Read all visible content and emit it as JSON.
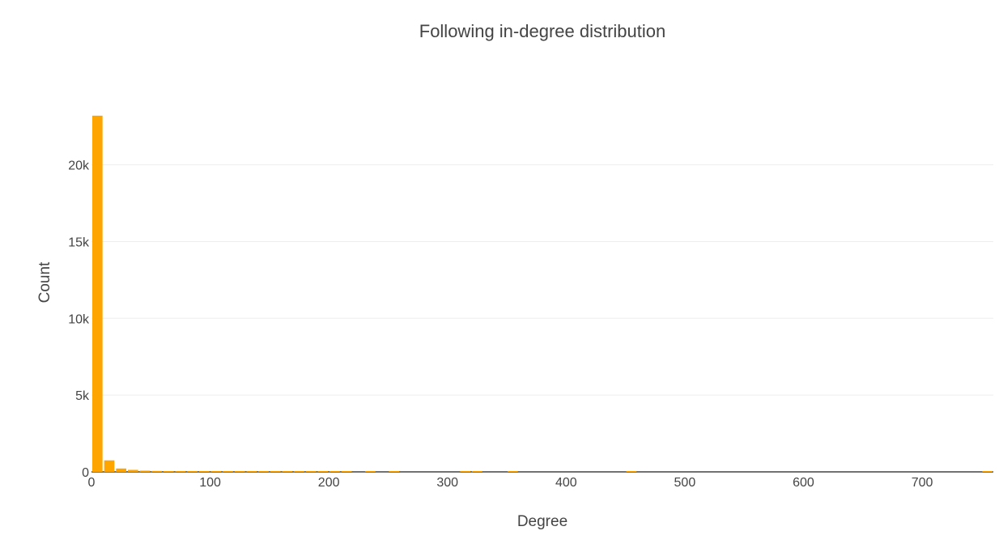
{
  "chart_data": {
    "type": "bar",
    "title": "Following in-degree distribution",
    "xlabel": "Degree",
    "ylabel": "Count",
    "xlim": [
      0,
      760
    ],
    "ylim": [
      0,
      23300
    ],
    "x_ticks": [
      0,
      100,
      200,
      300,
      400,
      500,
      600,
      700
    ],
    "x_tick_labels": [
      "0",
      "100",
      "200",
      "300",
      "400",
      "500",
      "600",
      "700"
    ],
    "y_ticks": [
      0,
      5000,
      10000,
      15000,
      20000
    ],
    "y_tick_labels": [
      "0",
      "5k",
      "10k",
      "15k",
      "20k"
    ],
    "grid": "horizontal",
    "bar_color": "#FFA500",
    "bin_width": 10,
    "bins": [
      {
        "x": 0,
        "count": 23200
      },
      {
        "x": 10,
        "count": 750
      },
      {
        "x": 20,
        "count": 220
      },
      {
        "x": 30,
        "count": 130
      },
      {
        "x": 40,
        "count": 80
      },
      {
        "x": 50,
        "count": 60
      },
      {
        "x": 60,
        "count": 50
      },
      {
        "x": 70,
        "count": 40
      },
      {
        "x": 80,
        "count": 35
      },
      {
        "x": 90,
        "count": 30
      },
      {
        "x": 100,
        "count": 25
      },
      {
        "x": 110,
        "count": 22
      },
      {
        "x": 120,
        "count": 20
      },
      {
        "x": 130,
        "count": 18
      },
      {
        "x": 140,
        "count": 15
      },
      {
        "x": 150,
        "count": 14
      },
      {
        "x": 160,
        "count": 12
      },
      {
        "x": 170,
        "count": 11
      },
      {
        "x": 180,
        "count": 10
      },
      {
        "x": 190,
        "count": 9
      },
      {
        "x": 200,
        "count": 8
      },
      {
        "x": 210,
        "count": 6
      },
      {
        "x": 230,
        "count": 5
      },
      {
        "x": 250,
        "count": 4
      },
      {
        "x": 310,
        "count": 3
      },
      {
        "x": 320,
        "count": 3
      },
      {
        "x": 350,
        "count": 2
      },
      {
        "x": 450,
        "count": 2
      },
      {
        "x": 750,
        "count": 2
      }
    ]
  }
}
